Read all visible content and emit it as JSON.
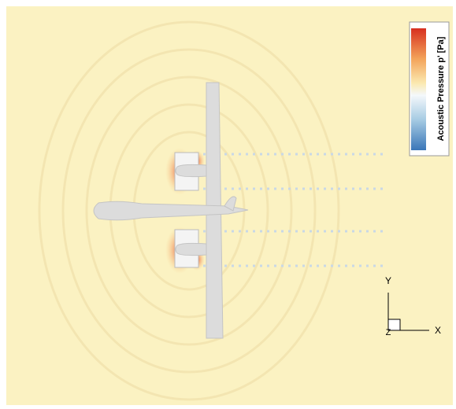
{
  "colorbar": {
    "label": "Acoustic Pressure p' [Pa]"
  },
  "axes": {
    "x": "X",
    "y": "Y",
    "z": "Z"
  }
}
